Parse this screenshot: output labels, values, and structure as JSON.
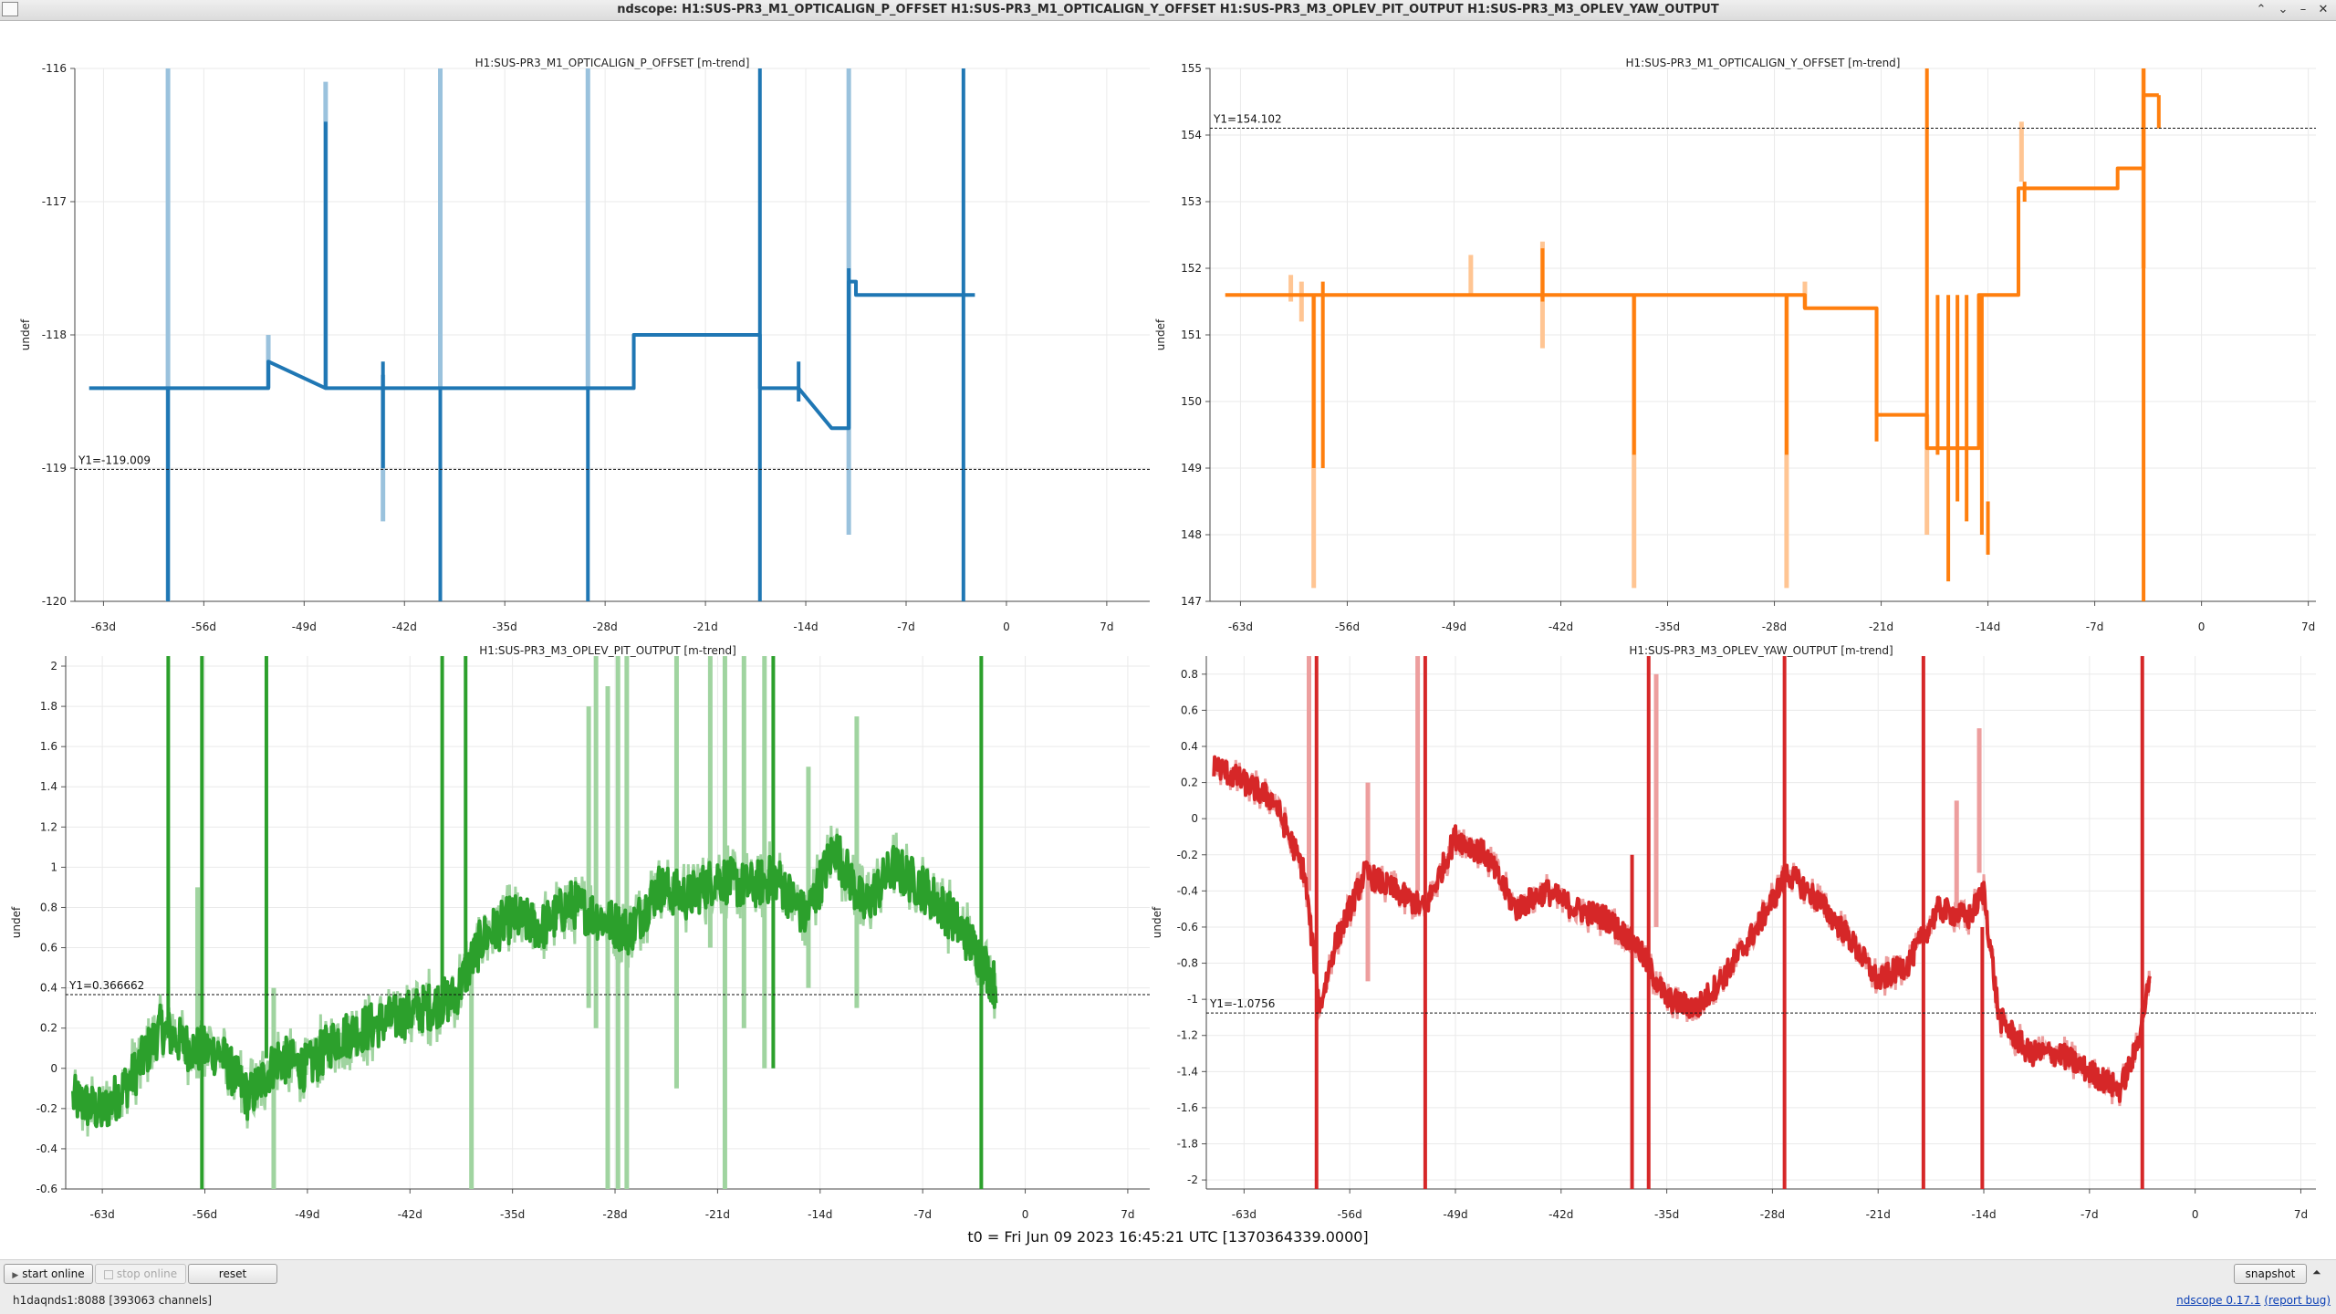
{
  "window": {
    "title": "ndscope: H1:SUS-PR3_M1_OPTICALIGN_P_OFFSET H1:SUS-PR3_M1_OPTICALIGN_Y_OFFSET H1:SUS-PR3_M3_OPLEV_PIT_OUTPUT H1:SUS-PR3_M3_OPLEV_YAW_OUTPUT",
    "buttons": {
      "minimize": "–",
      "maximize": "⌃",
      "restore": "⌄",
      "close": "✕"
    }
  },
  "colors": {
    "p_offset": "#1f77b4",
    "y_offset": "#ff7f0e",
    "pit_output": "#2ca02c",
    "yaw_output": "#d62728"
  },
  "chart_data": [
    {
      "type": "line",
      "title": "H1:SUS-PR3_M1_OPTICALIGN_P_OFFSET [m-trend]",
      "ylabel": "undef",
      "color": "#1f77b4",
      "xlim": [
        -65,
        10
      ],
      "ylim": [
        -120,
        -116
      ],
      "x_ticks": [
        -63,
        -56,
        -49,
        -42,
        -35,
        -28,
        -21,
        -14,
        -7,
        0,
        7
      ],
      "x_tick_labels": [
        "-63d",
        "-56d",
        "-49d",
        "-42d",
        "-35d",
        "-28d",
        "-21d",
        "-14d",
        "-7d",
        "0",
        "7d"
      ],
      "y_ticks": [
        -120,
        -119,
        -118,
        -117,
        -116
      ],
      "y_tick_labels": [
        "-120",
        "-119",
        "-118",
        "-117",
        "-116"
      ],
      "cursor": {
        "value": -119.009,
        "label": "Y1=-119.009"
      },
      "x": [
        -64,
        -58.5,
        -58.5,
        -51.5,
        -51.5,
        -47.5,
        -47.5,
        -43.5,
        -43.5,
        -39.5,
        -39.5,
        -29.2,
        -29.2,
        -26,
        -26,
        -22,
        -19.5,
        -17.2,
        -17.2,
        -14.5,
        -14.5,
        -12.2,
        -12.2,
        -11,
        -11,
        -10.5,
        -10.5,
        -3,
        -2.2
      ],
      "y": [
        -118.4,
        -118.4,
        -118.4,
        -118.4,
        -118.2,
        -118.4,
        -118.4,
        -118.4,
        -118.4,
        -118.4,
        -118.4,
        -118.4,
        -118.4,
        -118.4,
        -118.0,
        -118.0,
        -118.0,
        -118.0,
        -118.4,
        -118.4,
        -118.4,
        -118.7,
        -118.7,
        -118.7,
        -117.6,
        -117.6,
        -117.7,
        -117.7,
        -117.7
      ],
      "spikes": [
        {
          "x": -58.5,
          "y0": -120,
          "y1": -116,
          "light": true
        },
        {
          "x": -58.5,
          "y0": -120,
          "y1": -118.4,
          "light": false
        },
        {
          "x": -51.5,
          "y0": -118.4,
          "y1": -118.0,
          "light": true
        },
        {
          "x": -47.5,
          "y0": -118.4,
          "y1": -116.1,
          "light": true
        },
        {
          "x": -47.5,
          "y0": -118.4,
          "y1": -116.4,
          "light": false
        },
        {
          "x": -43.5,
          "y0": -118.3,
          "y1": -119.4,
          "light": true
        },
        {
          "x": -43.5,
          "y0": -118.2,
          "y1": -119.0,
          "light": false
        },
        {
          "x": -39.5,
          "y0": -118.4,
          "y1": -116,
          "light": true
        },
        {
          "x": -39.5,
          "y0": -118.4,
          "y1": -120,
          "light": false
        },
        {
          "x": -29.2,
          "y0": -116,
          "y1": -118.4,
          "light": true
        },
        {
          "x": -29.2,
          "y0": -118.4,
          "y1": -120,
          "light": false
        },
        {
          "x": -17.2,
          "y0": -116,
          "y1": -120,
          "light": false
        },
        {
          "x": -14.5,
          "y0": -118.2,
          "y1": -118.5,
          "light": false
        },
        {
          "x": -11,
          "y0": -116,
          "y1": -119.5,
          "light": true
        },
        {
          "x": -11,
          "y0": -117.5,
          "y1": -118.7,
          "light": false
        },
        {
          "x": -3,
          "y0": -116,
          "y1": -120,
          "light": false
        }
      ]
    },
    {
      "type": "line",
      "title": "H1:SUS-PR3_M1_OPTICALIGN_Y_OFFSET [m-trend]",
      "ylabel": "undef",
      "color": "#ff7f0e",
      "xlim": [
        -65,
        7.5
      ],
      "ylim": [
        147,
        155
      ],
      "x_ticks": [
        -63,
        -56,
        -49,
        -42,
        -35,
        -28,
        -21,
        -14,
        -7,
        0,
        7
      ],
      "x_tick_labels": [
        "-63d",
        "-56d",
        "-49d",
        "-42d",
        "-35d",
        "-28d",
        "-21d",
        "-14d",
        "-7d",
        "0",
        "7d"
      ],
      "y_ticks": [
        147,
        148,
        149,
        150,
        151,
        152,
        153,
        154,
        155
      ],
      "y_tick_labels": [
        "147",
        "148",
        "149",
        "150",
        "151",
        "152",
        "153",
        "154",
        "155"
      ],
      "cursor": {
        "value": 154.102,
        "label": "Y1=154.102"
      },
      "x": [
        -64,
        -26,
        -26,
        -21.3,
        -21.3,
        -18,
        -18,
        -14.6,
        -14.6,
        -12,
        -12,
        -5.5,
        -5.5,
        -3.8,
        -3.8,
        -2.8
      ],
      "y": [
        151.6,
        151.6,
        151.4,
        151.4,
        149.8,
        149.8,
        149.3,
        149.3,
        151.6,
        151.6,
        153.2,
        153.2,
        153.5,
        153.5,
        154.6,
        154.6
      ],
      "spikes": [
        {
          "x": -59.7,
          "y0": 151.9,
          "y1": 151.5,
          "light": true
        },
        {
          "x": -59,
          "y0": 151.8,
          "y1": 151.2,
          "light": true
        },
        {
          "x": -58.2,
          "y0": 151.6,
          "y1": 147.2,
          "light": true
        },
        {
          "x": -58.2,
          "y0": 151.6,
          "y1": 149.0,
          "light": false
        },
        {
          "x": -57.6,
          "y0": 151.8,
          "y1": 149.0,
          "light": false
        },
        {
          "x": -47.9,
          "y0": 152.2,
          "y1": 151.6,
          "light": true
        },
        {
          "x": -43.2,
          "y0": 152.4,
          "y1": 150.8,
          "light": true
        },
        {
          "x": -43.2,
          "y0": 152.3,
          "y1": 151.5,
          "light": false
        },
        {
          "x": -37.2,
          "y0": 151.6,
          "y1": 147.2,
          "light": true
        },
        {
          "x": -37.2,
          "y0": 151.6,
          "y1": 149.2,
          "light": false
        },
        {
          "x": -27.2,
          "y0": 151.6,
          "y1": 147.2,
          "light": true
        },
        {
          "x": -27.2,
          "y0": 151.6,
          "y1": 149.2,
          "light": false
        },
        {
          "x": -26,
          "y0": 151.8,
          "y1": 151.4,
          "light": true
        },
        {
          "x": -21.3,
          "y0": 151.4,
          "y1": 149.4,
          "light": false
        },
        {
          "x": -18,
          "y0": 155,
          "y1": 149.2,
          "light": false
        },
        {
          "x": -18,
          "y0": 149.8,
          "y1": 148.0,
          "light": true
        },
        {
          "x": -17.3,
          "y0": 151.6,
          "y1": 149.2,
          "light": false
        },
        {
          "x": -16.6,
          "y0": 151.6,
          "y1": 147.3,
          "light": false
        },
        {
          "x": -16,
          "y0": 151.6,
          "y1": 148.5,
          "light": false
        },
        {
          "x": -15.4,
          "y0": 151.6,
          "y1": 148.2,
          "light": false
        },
        {
          "x": -14.4,
          "y0": 151.6,
          "y1": 148.0,
          "light": false
        },
        {
          "x": -14,
          "y0": 148.5,
          "y1": 147.7,
          "light": false
        },
        {
          "x": -11.8,
          "y0": 154.2,
          "y1": 153.3,
          "light": true
        },
        {
          "x": -11.6,
          "y0": 153.3,
          "y1": 153.0,
          "light": false
        },
        {
          "x": -3.8,
          "y0": 155,
          "y1": 152.0,
          "light": true
        },
        {
          "x": -3.8,
          "y0": 155,
          "y1": 147.0,
          "light": false
        },
        {
          "x": -2.8,
          "y0": 154.6,
          "y1": 154.1,
          "light": false
        }
      ]
    },
    {
      "type": "line",
      "title": "H1:SUS-PR3_M3_OPLEV_PIT_OUTPUT [m-trend]",
      "ylabel": "undef",
      "color": "#2ca02c",
      "xlim": [
        -65.5,
        8.5
      ],
      "ylim": [
        -0.6,
        2.05
      ],
      "x_ticks": [
        -63,
        -56,
        -49,
        -42,
        -35,
        -28,
        -21,
        -14,
        -7,
        0,
        7
      ],
      "x_tick_labels": [
        "-63d",
        "-56d",
        "-49d",
        "-42d",
        "-35d",
        "-28d",
        "-21d",
        "-14d",
        "-7d",
        "0",
        "7d"
      ],
      "y_ticks": [
        -0.6,
        -0.4,
        -0.2,
        0,
        0.2,
        0.4,
        0.6,
        0.8,
        1,
        1.2,
        1.4,
        1.6,
        1.8,
        2
      ],
      "y_tick_labels": [
        "-0.6",
        "-0.4",
        "-0.2",
        "0",
        "0.2",
        "0.4",
        "0.6",
        "0.8",
        "1",
        "1.2",
        "1.4",
        "1.6",
        "1.8",
        "2"
      ],
      "cursor": {
        "value": 0.366662,
        "label": "Y1=0.366662"
      },
      "x": [
        -65,
        -63,
        -61,
        -59,
        -57,
        -55,
        -53,
        -51,
        -49,
        -47,
        -45,
        -43,
        -41,
        -39,
        -37,
        -35,
        -33,
        -31,
        -29,
        -27,
        -25,
        -23,
        -21,
        -19,
        -17,
        -15,
        -13,
        -11,
        -9,
        -7,
        -5,
        -3,
        -2
      ],
      "y": [
        -0.15,
        -0.22,
        -0.05,
        0.2,
        0.1,
        0.08,
        -0.15,
        0.05,
        0.0,
        0.15,
        0.2,
        0.25,
        0.3,
        0.35,
        0.65,
        0.75,
        0.7,
        0.82,
        0.75,
        0.68,
        0.9,
        0.85,
        0.95,
        0.9,
        0.95,
        0.75,
        1.1,
        0.8,
        1.0,
        0.9,
        0.75,
        0.55,
        0.4
      ],
      "noise": 0.12,
      "spikes": [
        {
          "x": -58.5,
          "y0": 2.05,
          "y1": 0.15,
          "light": false
        },
        {
          "x": -56.5,
          "y0": 0.9,
          "y1": -0.05,
          "light": true
        },
        {
          "x": -56.2,
          "y0": 2.05,
          "y1": -0.6,
          "light": false
        },
        {
          "x": -51.8,
          "y0": 2.05,
          "y1": 0.05,
          "light": false
        },
        {
          "x": -51.3,
          "y0": 0.4,
          "y1": -0.6,
          "light": true
        },
        {
          "x": -39.8,
          "y0": 2.05,
          "y1": 0.3,
          "light": false
        },
        {
          "x": -38.2,
          "y0": 2.05,
          "y1": 0.4,
          "light": false
        },
        {
          "x": -37.8,
          "y0": 0.6,
          "y1": -0.6,
          "light": true
        },
        {
          "x": -29.8,
          "y0": 1.8,
          "y1": 0.3,
          "light": true
        },
        {
          "x": -29.3,
          "y0": 2.05,
          "y1": 0.2,
          "light": true
        },
        {
          "x": -28.5,
          "y0": 1.9,
          "y1": -0.6,
          "light": true
        },
        {
          "x": -27.8,
          "y0": 2.05,
          "y1": -0.6,
          "light": true
        },
        {
          "x": -27.2,
          "y0": 2.05,
          "y1": -0.6,
          "light": true
        },
        {
          "x": -23.8,
          "y0": 2.05,
          "y1": -0.1,
          "light": true
        },
        {
          "x": -21.5,
          "y0": 2.05,
          "y1": 0.6,
          "light": true
        },
        {
          "x": -20.5,
          "y0": 2.05,
          "y1": -0.6,
          "light": true
        },
        {
          "x": -19.2,
          "y0": 2.05,
          "y1": 0.2,
          "light": true
        },
        {
          "x": -17.8,
          "y0": 2.05,
          "y1": 0.0,
          "light": true
        },
        {
          "x": -17.2,
          "y0": 2.05,
          "y1": 0.0,
          "light": false
        },
        {
          "x": -14.8,
          "y0": 1.5,
          "y1": 0.4,
          "light": true
        },
        {
          "x": -11.5,
          "y0": 1.75,
          "y1": 0.3,
          "light": true
        },
        {
          "x": -3,
          "y0": 2.05,
          "y1": -0.6,
          "light": false
        }
      ]
    },
    {
      "type": "line",
      "title": "H1:SUS-PR3_M3_OPLEV_YAW_OUTPUT [m-trend]",
      "ylabel": "undef",
      "color": "#d62728",
      "xlim": [
        -65.5,
        8
      ],
      "ylim": [
        -2.05,
        0.9
      ],
      "x_ticks": [
        -63,
        -56,
        -49,
        -42,
        -35,
        -28,
        -21,
        -14,
        -7,
        0,
        7
      ],
      "x_tick_labels": [
        "-63d",
        "-56d",
        "-49d",
        "-42d",
        "-35d",
        "-28d",
        "-21d",
        "-14d",
        "-7d",
        "0",
        "7d"
      ],
      "y_ticks": [
        -2,
        -1.8,
        -1.6,
        -1.4,
        -1.2,
        -1,
        -0.8,
        -0.6,
        -0.4,
        -0.2,
        0,
        0.2,
        0.4,
        0.6,
        0.8
      ],
      "y_tick_labels": [
        "-2",
        "-1.8",
        "-1.6",
        "-1.4",
        "-1.2",
        "-1",
        "-0.8",
        "-0.6",
        "-0.4",
        "-0.2",
        "0",
        "0.2",
        "0.4",
        "0.6",
        "0.8"
      ],
      "cursor": {
        "value": -1.0756,
        "label": "Y1=-1.0756"
      },
      "x": [
        -65,
        -63,
        -61,
        -59,
        -58,
        -57,
        -55,
        -53,
        -51,
        -49,
        -47,
        -45,
        -43,
        -41,
        -39,
        -37,
        -35,
        -33,
        -31,
        -29,
        -27,
        -25,
        -23,
        -21,
        -19,
        -17,
        -15,
        -14,
        -13,
        -11,
        -9,
        -7,
        -5,
        -4,
        -3
      ],
      "y": [
        0.3,
        0.2,
        0.1,
        -0.3,
        -1.05,
        -0.7,
        -0.3,
        -0.4,
        -0.5,
        -0.1,
        -0.2,
        -0.5,
        -0.4,
        -0.5,
        -0.55,
        -0.7,
        -1.0,
        -1.05,
        -0.85,
        -0.6,
        -0.3,
        -0.45,
        -0.65,
        -0.9,
        -0.8,
        -0.5,
        -0.55,
        -0.4,
        -1.1,
        -1.3,
        -1.3,
        -1.4,
        -1.5,
        -1.3,
        -0.9
      ],
      "noise": 0.07,
      "spikes": [
        {
          "x": -58.7,
          "y0": 0.9,
          "y1": -0.4,
          "light": true
        },
        {
          "x": -58.2,
          "y0": 0.9,
          "y1": -2.05,
          "light": false
        },
        {
          "x": -54.8,
          "y0": 0.2,
          "y1": -0.9,
          "light": true
        },
        {
          "x": -51.5,
          "y0": 0.9,
          "y1": -0.4,
          "light": true
        },
        {
          "x": -51.0,
          "y0": 0.9,
          "y1": -2.05,
          "light": false
        },
        {
          "x": -37.3,
          "y0": -0.2,
          "y1": -2.05,
          "light": false
        },
        {
          "x": -36.2,
          "y0": 0.9,
          "y1": -2.05,
          "light": false
        },
        {
          "x": -35.7,
          "y0": 0.8,
          "y1": -0.6,
          "light": true
        },
        {
          "x": -27.2,
          "y0": 0.9,
          "y1": -2.05,
          "light": false
        },
        {
          "x": -18.0,
          "y0": 0.9,
          "y1": -2.05,
          "light": false
        },
        {
          "x": -15.8,
          "y0": 0.1,
          "y1": -0.6,
          "light": true
        },
        {
          "x": -14.3,
          "y0": 0.5,
          "y1": -0.3,
          "light": true
        },
        {
          "x": -14.1,
          "y0": -0.6,
          "y1": -2.05,
          "light": false
        },
        {
          "x": -3.5,
          "y0": 0.9,
          "y1": -2.05,
          "light": false
        }
      ]
    }
  ],
  "t0": "t0 = Fri Jun 09 2023 16:45:21 UTC [1370364339.0000]",
  "controls": {
    "start_online": "start online",
    "stop_online": "stop online",
    "reset": "reset",
    "snapshot": "snapshot",
    "expand": "⏶"
  },
  "status": {
    "server": "h1daqnds1:8088  [393063 channels]",
    "version": "ndscope 0.17.1",
    "report_bug": "(report bug)"
  }
}
